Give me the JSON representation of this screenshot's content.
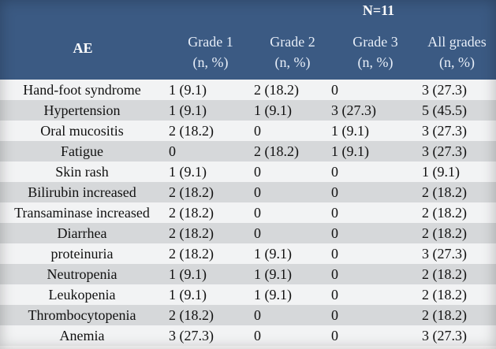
{
  "header": {
    "n": "N=11",
    "ae": "AE",
    "columns": [
      {
        "line1": "Grade 1",
        "line2": "(n, %)"
      },
      {
        "line1": "Grade  2",
        "line2": "(n, %)"
      },
      {
        "line1": "Grade  3",
        "line2": "(n, %)"
      },
      {
        "line1": "All grades",
        "line2": "(n, %)"
      }
    ]
  },
  "rows": [
    {
      "ae": "Hand-foot syndrome",
      "g1": "1 (9.1)",
      "g2": "2 (18.2)",
      "g3": "0",
      "all": "3 (27.3)"
    },
    {
      "ae": "Hypertension",
      "g1": "1 (9.1)",
      "g2": "1 (9.1)",
      "g3": "3 (27.3)",
      "all": "5 (45.5)"
    },
    {
      "ae": "Oral mucositis",
      "g1": "2 (18.2)",
      "g2": "0",
      "g3": "1 (9.1)",
      "all": "3 (27.3)"
    },
    {
      "ae": "Fatigue",
      "g1": "0",
      "g2": "2 (18.2)",
      "g3": "1 (9.1)",
      "all": "3 (27.3)"
    },
    {
      "ae": "Skin rash",
      "g1": "1 (9.1)",
      "g2": "0",
      "g3": "0",
      "all": "1 (9.1)"
    },
    {
      "ae": "Bilirubin increased",
      "g1": "2 (18.2)",
      "g2": "0",
      "g3": "0",
      "all": "2 (18.2)"
    },
    {
      "ae": "Transaminase increased",
      "g1": "2 (18.2)",
      "g2": "0",
      "g3": "0",
      "all": "2 (18.2)"
    },
    {
      "ae": "Diarrhea",
      "g1": "2 (18.2)",
      "g2": "0",
      "g3": "0",
      "all": "2 (18.2)"
    },
    {
      "ae": "proteinuria",
      "g1": "2 (18.2)",
      "g2": "1 (9.1)",
      "g3": "0",
      "all": "3 (27.3)"
    },
    {
      "ae": "Neutropenia",
      "g1": "1 (9.1)",
      "g2": "1 (9.1)",
      "g3": "0",
      "all": "2 (18.2)"
    },
    {
      "ae": "Leukopenia",
      "g1": "1 (9.1)",
      "g2": "1 (9.1)",
      "g3": "0",
      "all": "2 (18.2)"
    },
    {
      "ae": "Thrombocytopenia",
      "g1": "2 (18.2)",
      "g2": "0",
      "g3": "0",
      "all": "2 (18.2)"
    },
    {
      "ae": "Anemia",
      "g1": "3 (27.3)",
      "g2": "0",
      "g3": "0",
      "all": "3 (27.3)"
    }
  ]
}
